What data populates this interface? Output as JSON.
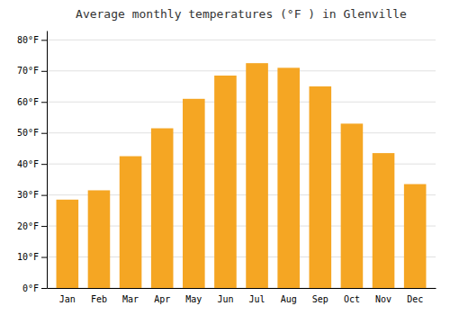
{
  "chart_data": {
    "type": "bar",
    "title": "Average monthly temperatures (°F ) in Glenville",
    "categories": [
      "Jan",
      "Feb",
      "Mar",
      "Apr",
      "May",
      "Jun",
      "Jul",
      "Aug",
      "Sep",
      "Oct",
      "Nov",
      "Dec"
    ],
    "values": [
      28.5,
      31.5,
      42.5,
      51.5,
      61.0,
      68.5,
      72.5,
      71.0,
      65.0,
      53.0,
      43.5,
      33.5
    ],
    "color": "#F5A623",
    "ylim": [
      0,
      83
    ],
    "yticks": [
      {
        "value": 0,
        "label": "0°F"
      },
      {
        "value": 10,
        "label": "10°F"
      },
      {
        "value": 20,
        "label": "20°F"
      },
      {
        "value": 30,
        "label": "30°F"
      },
      {
        "value": 40,
        "label": "40°F"
      },
      {
        "value": 50,
        "label": "50°F"
      },
      {
        "value": 60,
        "label": "60°F"
      },
      {
        "value": 70,
        "label": "70°F"
      },
      {
        "value": 80,
        "label": "80°F"
      }
    ],
    "grid": true
  }
}
